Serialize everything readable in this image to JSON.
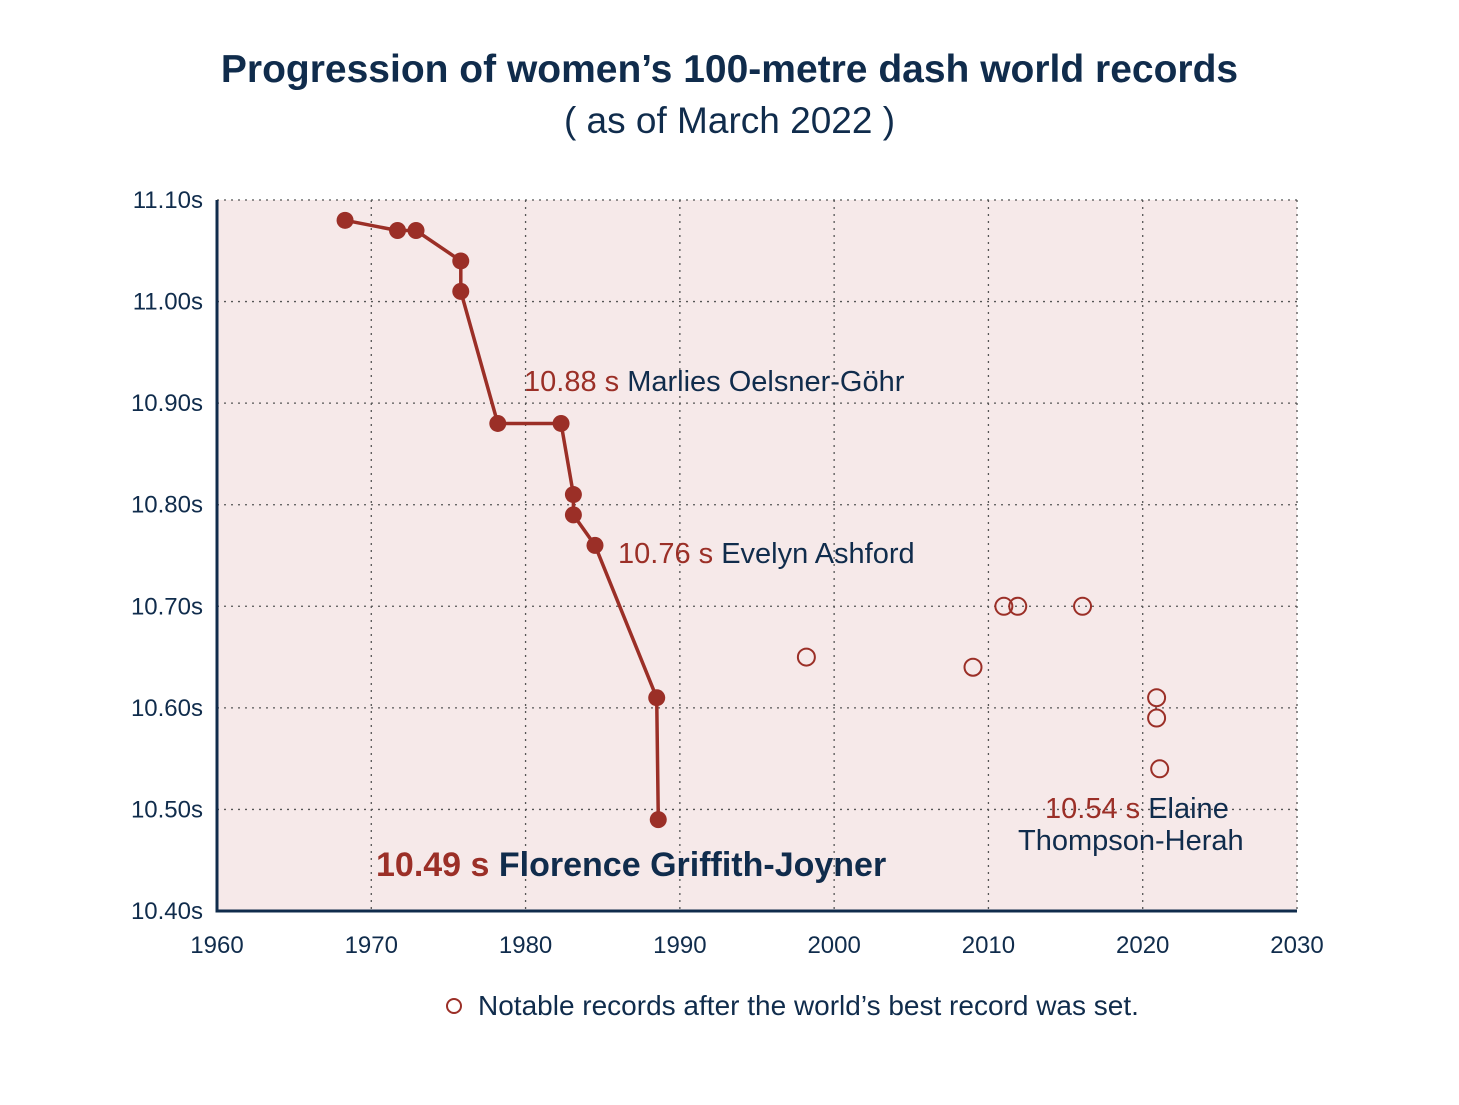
{
  "chart_data": {
    "type": "scatter",
    "title": "Progression of women’s 100-metre dash world records",
    "subtitle": "( as of March 2022 )",
    "xlim": [
      1960,
      2030
    ],
    "ylim": [
      10.4,
      11.1
    ],
    "x_ticks": [
      "1960",
      "1970",
      "1980",
      "1990",
      "2000",
      "2010",
      "2020",
      "2030"
    ],
    "y_ticks": [
      "10.40s",
      "10.50s",
      "10.60s",
      "10.70s",
      "10.80s",
      "10.90s",
      "11.00s",
      "11.10s"
    ],
    "grid": true,
    "colors": {
      "record": "#9b2f27",
      "text": "#102c4c",
      "plot_bg": "#f6e9e9"
    },
    "series": [
      {
        "style": "line-filled-markers",
        "x": [
          1968.3,
          1971.7,
          1972.9,
          1975.8,
          1975.8,
          1978.2,
          1982.3,
          1983.1,
          1983.1,
          1984.5,
          1988.5,
          1988.6
        ],
        "y": [
          11.08,
          11.07,
          11.07,
          11.04,
          11.01,
          10.88,
          10.88,
          10.81,
          10.79,
          10.76,
          10.61,
          10.49
        ]
      },
      {
        "name": "Notable records after the world’s best record was set.",
        "style": "hollow-markers",
        "x": [
          1998.2,
          2009.0,
          2011.0,
          2011.9,
          2016.1,
          2020.9,
          2020.9,
          2021.1
        ],
        "y": [
          10.65,
          10.64,
          10.7,
          10.7,
          10.7,
          10.61,
          10.59,
          10.54
        ]
      }
    ],
    "annotations": [
      {
        "value": "10.88 s",
        "name": "Marlies Oelsner-Göhr"
      },
      {
        "value": "10.76 s",
        "name": "Evelyn Ashford"
      },
      {
        "value": "10.49 s",
        "name": "Florence Griffith-Joyner"
      },
      {
        "value": "10.54 s",
        "name": "Elaine",
        "name2": "Thompson-Herah"
      }
    ],
    "legend": {
      "position": "bottom-right",
      "label": "Notable records after the world’s best record was set."
    }
  }
}
